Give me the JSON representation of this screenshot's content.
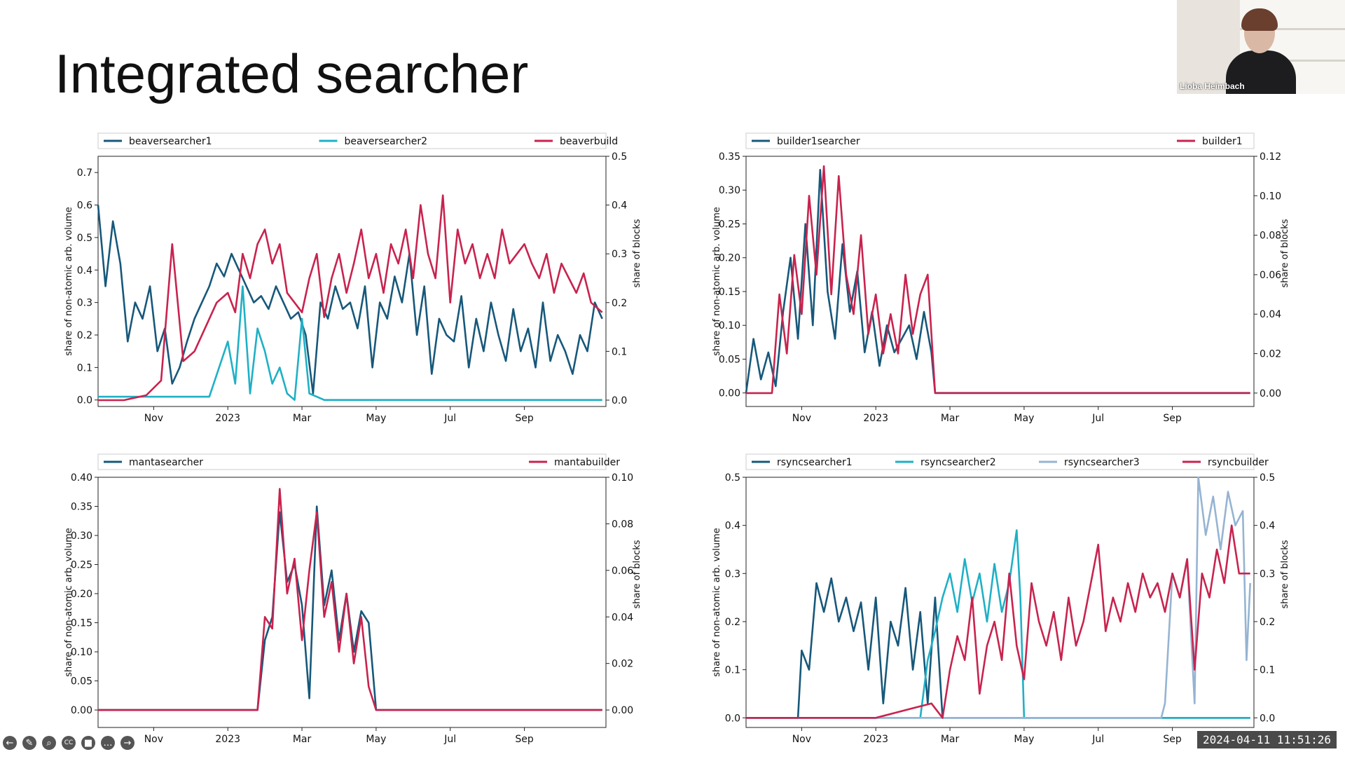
{
  "slide": {
    "title": "Integrated searcher"
  },
  "webcam": {
    "name": "Lioba Heimbach"
  },
  "timestamp": "2024-04-11  11:51:26",
  "toolbar": {
    "icons": [
      "back-icon",
      "pen-icon",
      "zoom-icon",
      "captions-icon",
      "camera-icon",
      "more-icon",
      "forward-icon"
    ],
    "glyphs": [
      "←",
      "✎",
      "⌕",
      "CC",
      "■",
      "…",
      "→"
    ]
  },
  "colors": {
    "dark": "#17587a",
    "light": "#1fb0c6",
    "pale": "#96b4d2",
    "red": "#c8234e"
  },
  "chart_data": [
    {
      "type": "line",
      "xlabels": [
        "Nov",
        "2023",
        "Mar",
        "May",
        "Jul",
        "Sep"
      ],
      "xlabel_pos": [
        1,
        3,
        5,
        7,
        9,
        11
      ],
      "xlim": [
        -0.5,
        13.2
      ],
      "ylabel": "share of non-atomic arb. volume",
      "y2label": "share of blocks",
      "ylim": [
        -0.02,
        0.75
      ],
      "yticks": [
        "0.0",
        "0.1",
        "0.2",
        "0.3",
        "0.4",
        "0.5",
        "0.6",
        "0.7"
      ],
      "y2lim": [
        -0.013,
        0.5
      ],
      "y2ticks": [
        "0.0",
        "0.1",
        "0.2",
        "0.3",
        "0.4",
        "0.5"
      ],
      "legend": [
        {
          "name": "beaversearcher1",
          "color": "#17587a"
        },
        {
          "name": "beaversearcher2",
          "color": "#1fb0c6"
        },
        {
          "name": "beaverbuild",
          "color": "#c8234e"
        }
      ],
      "series": [
        {
          "name": "beaversearcher1",
          "axis": "y",
          "color": "#17587a",
          "x": [
            -0.5,
            -0.3,
            -0.1,
            0.1,
            0.3,
            0.5,
            0.7,
            0.9,
            1.1,
            1.3,
            1.5,
            1.7,
            1.9,
            2.1,
            2.3,
            2.5,
            2.7,
            2.9,
            3.1,
            3.3,
            3.5,
            3.7,
            3.9,
            4.1,
            4.3,
            4.5,
            4.7,
            4.9,
            5.1,
            5.3,
            5.5,
            5.7,
            5.9,
            6.1,
            6.3,
            6.5,
            6.7,
            6.9,
            7.1,
            7.3,
            7.5,
            7.7,
            7.9,
            8.1,
            8.3,
            8.5,
            8.7,
            8.9,
            9.1,
            9.3,
            9.5,
            9.7,
            9.9,
            10.1,
            10.3,
            10.5,
            10.7,
            10.9,
            11.1,
            11.3,
            11.5,
            11.7,
            11.9,
            12.1,
            12.3,
            12.5,
            12.7,
            12.9,
            13.1
          ],
          "y": [
            0.6,
            0.35,
            0.55,
            0.42,
            0.18,
            0.3,
            0.25,
            0.35,
            0.15,
            0.22,
            0.05,
            0.1,
            0.18,
            0.25,
            0.3,
            0.35,
            0.42,
            0.38,
            0.45,
            0.4,
            0.35,
            0.3,
            0.32,
            0.28,
            0.35,
            0.3,
            0.25,
            0.27,
            0.2,
            0.02,
            0.3,
            0.25,
            0.35,
            0.28,
            0.3,
            0.22,
            0.35,
            0.1,
            0.3,
            0.25,
            0.38,
            0.3,
            0.45,
            0.2,
            0.35,
            0.08,
            0.25,
            0.2,
            0.18,
            0.32,
            0.1,
            0.25,
            0.15,
            0.3,
            0.2,
            0.12,
            0.28,
            0.15,
            0.22,
            0.1,
            0.3,
            0.12,
            0.2,
            0.15,
            0.08,
            0.2,
            0.15,
            0.3,
            0.25
          ]
        },
        {
          "name": "beaversearcher2",
          "axis": "y",
          "color": "#1fb0c6",
          "x": [
            -0.5,
            1.0,
            2.5,
            3.0,
            3.2,
            3.4,
            3.6,
            3.8,
            4.0,
            4.2,
            4.4,
            4.6,
            4.8,
            5.0,
            5.2,
            5.4,
            5.6,
            5.8,
            6.0,
            7.0,
            9.0,
            11.0,
            13.1
          ],
          "y": [
            0.01,
            0.01,
            0.01,
            0.18,
            0.05,
            0.35,
            0.02,
            0.22,
            0.15,
            0.05,
            0.1,
            0.02,
            0.0,
            0.25,
            0.02,
            0.01,
            0.0,
            0.0,
            0.0,
            0.0,
            0.0,
            0.0,
            0.0
          ]
        },
        {
          "name": "beaverbuild",
          "axis": "y2",
          "color": "#c8234e",
          "x": [
            -0.5,
            0.2,
            0.8,
            1.2,
            1.5,
            1.8,
            2.1,
            2.4,
            2.7,
            3.0,
            3.2,
            3.4,
            3.6,
            3.8,
            4.0,
            4.2,
            4.4,
            4.6,
            4.8,
            5.0,
            5.2,
            5.4,
            5.6,
            5.8,
            6.0,
            6.2,
            6.4,
            6.6,
            6.8,
            7.0,
            7.2,
            7.4,
            7.6,
            7.8,
            8.0,
            8.2,
            8.4,
            8.6,
            8.8,
            9.0,
            9.2,
            9.4,
            9.6,
            9.8,
            10.0,
            10.2,
            10.4,
            10.6,
            10.8,
            11.0,
            11.2,
            11.4,
            11.6,
            11.8,
            12.0,
            12.2,
            12.4,
            12.6,
            12.8,
            13.1
          ],
          "y": [
            0.0,
            0.0,
            0.01,
            0.04,
            0.32,
            0.08,
            0.1,
            0.15,
            0.2,
            0.22,
            0.18,
            0.3,
            0.25,
            0.32,
            0.35,
            0.28,
            0.32,
            0.22,
            0.2,
            0.18,
            0.25,
            0.3,
            0.17,
            0.25,
            0.3,
            0.22,
            0.28,
            0.35,
            0.25,
            0.3,
            0.22,
            0.32,
            0.28,
            0.35,
            0.25,
            0.4,
            0.3,
            0.25,
            0.42,
            0.2,
            0.35,
            0.28,
            0.32,
            0.25,
            0.3,
            0.25,
            0.35,
            0.28,
            0.3,
            0.32,
            0.28,
            0.25,
            0.3,
            0.22,
            0.28,
            0.25,
            0.22,
            0.26,
            0.2,
            0.18
          ]
        }
      ]
    },
    {
      "type": "line",
      "xlabels": [
        "Nov",
        "2023",
        "Mar",
        "May",
        "Jul",
        "Sep"
      ],
      "xlabel_pos": [
        1,
        3,
        5,
        7,
        9,
        11
      ],
      "xlim": [
        -0.5,
        13.2
      ],
      "ylabel": "share of non-atomic arb. volume",
      "y2label": "share of blocks",
      "ylim": [
        -0.02,
        0.35
      ],
      "yticks": [
        "0.00",
        "0.05",
        "0.10",
        "0.15",
        "0.20",
        "0.25",
        "0.30",
        "0.35"
      ],
      "y2lim": [
        -0.0068,
        0.12
      ],
      "y2ticks": [
        "0.00",
        "0.02",
        "0.04",
        "0.06",
        "0.08",
        "0.10",
        "0.12"
      ],
      "legend": [
        {
          "name": "builder1searcher",
          "color": "#17587a"
        },
        {
          "name": "builder1",
          "color": "#c8234e"
        }
      ],
      "series": [
        {
          "name": "builder1searcher",
          "axis": "y",
          "color": "#17587a",
          "x": [
            -0.5,
            -0.3,
            -0.1,
            0.1,
            0.3,
            0.5,
            0.7,
            0.9,
            1.1,
            1.3,
            1.5,
            1.7,
            1.9,
            2.1,
            2.3,
            2.5,
            2.7,
            2.9,
            3.1,
            3.3,
            3.5,
            3.7,
            3.9,
            4.1,
            4.3,
            4.5,
            4.6,
            13.1
          ],
          "y": [
            0.0,
            0.08,
            0.02,
            0.06,
            0.01,
            0.12,
            0.2,
            0.08,
            0.25,
            0.1,
            0.33,
            0.15,
            0.08,
            0.22,
            0.12,
            0.18,
            0.06,
            0.12,
            0.04,
            0.1,
            0.06,
            0.08,
            0.1,
            0.05,
            0.12,
            0.06,
            0.0,
            0.0
          ]
        },
        {
          "name": "builder1",
          "axis": "y2",
          "color": "#c8234e",
          "x": [
            -0.5,
            0.2,
            0.4,
            0.6,
            0.8,
            1.0,
            1.2,
            1.4,
            1.6,
            1.8,
            2.0,
            2.2,
            2.4,
            2.6,
            2.8,
            3.0,
            3.2,
            3.4,
            3.6,
            3.8,
            4.0,
            4.2,
            4.4,
            4.6,
            13.1
          ],
          "y": [
            0.0,
            0.0,
            0.05,
            0.02,
            0.07,
            0.04,
            0.1,
            0.06,
            0.115,
            0.05,
            0.11,
            0.06,
            0.04,
            0.08,
            0.03,
            0.05,
            0.02,
            0.04,
            0.02,
            0.06,
            0.03,
            0.05,
            0.06,
            0.0,
            0.0
          ]
        }
      ]
    },
    {
      "type": "line",
      "xlabels": [
        "Nov",
        "2023",
        "Mar",
        "May",
        "Jul",
        "Sep"
      ],
      "xlabel_pos": [
        1,
        3,
        5,
        7,
        9,
        11
      ],
      "xlim": [
        -0.5,
        13.2
      ],
      "ylabel": "share of non-atomic arb. volume",
      "y2label": "share of blocks",
      "ylim": [
        -0.03,
        0.4
      ],
      "yticks": [
        "0.00",
        "0.05",
        "0.10",
        "0.15",
        "0.20",
        "0.25",
        "0.30",
        "0.35",
        "0.40"
      ],
      "y2lim": [
        -0.0075,
        0.1
      ],
      "y2ticks": [
        "0.00",
        "0.02",
        "0.04",
        "0.06",
        "0.08",
        "0.10"
      ],
      "legend": [
        {
          "name": "mantasearcher",
          "color": "#17587a"
        },
        {
          "name": "mantabuilder",
          "color": "#c8234e"
        }
      ],
      "series": [
        {
          "name": "mantasearcher",
          "axis": "y",
          "color": "#17587a",
          "x": [
            -0.5,
            3.8,
            4.0,
            4.2,
            4.4,
            4.6,
            4.8,
            5.0,
            5.2,
            5.4,
            5.6,
            5.8,
            6.0,
            6.2,
            6.4,
            6.6,
            6.8,
            7.0,
            13.1
          ],
          "y": [
            0.0,
            0.0,
            0.12,
            0.16,
            0.34,
            0.22,
            0.25,
            0.18,
            0.02,
            0.35,
            0.18,
            0.24,
            0.12,
            0.2,
            0.1,
            0.17,
            0.15,
            0.0,
            0.0
          ]
        },
        {
          "name": "mantabuilder",
          "axis": "y2",
          "color": "#c8234e",
          "x": [
            -0.5,
            3.8,
            4.0,
            4.2,
            4.4,
            4.6,
            4.8,
            5.0,
            5.2,
            5.4,
            5.6,
            5.8,
            6.0,
            6.2,
            6.4,
            6.6,
            6.8,
            7.0,
            13.1
          ],
          "y": [
            0.0,
            0.0,
            0.04,
            0.035,
            0.095,
            0.05,
            0.065,
            0.03,
            0.06,
            0.085,
            0.04,
            0.055,
            0.025,
            0.05,
            0.02,
            0.04,
            0.01,
            0.0,
            0.0
          ]
        }
      ]
    },
    {
      "type": "line",
      "xlabels": [
        "Nov",
        "2023",
        "Mar",
        "May",
        "Jul",
        "Sep"
      ],
      "xlabel_pos": [
        1,
        3,
        5,
        7,
        9,
        11
      ],
      "xlim": [
        -0.5,
        13.2
      ],
      "ylabel": "share of non-atomic arb. volume",
      "y2label": "share of blocks",
      "ylim": [
        -0.02,
        0.5
      ],
      "yticks": [
        "0.0",
        "0.1",
        "0.2",
        "0.3",
        "0.4",
        "0.5"
      ],
      "y2lim": [
        -0.02,
        0.5
      ],
      "y2ticks": [
        "0.0",
        "0.1",
        "0.2",
        "0.3",
        "0.4",
        "0.5"
      ],
      "legend": [
        {
          "name": "rsyncsearcher1",
          "color": "#17587a"
        },
        {
          "name": "rsyncsearcher2",
          "color": "#1fb0c6"
        },
        {
          "name": "rsyncsearcher3",
          "color": "#96b4d2"
        },
        {
          "name": "rsyncbuilder",
          "color": "#c8234e"
        }
      ],
      "series": [
        {
          "name": "rsyncsearcher1",
          "axis": "y",
          "color": "#17587a",
          "x": [
            -0.5,
            0.9,
            1.0,
            1.2,
            1.4,
            1.6,
            1.8,
            2.0,
            2.2,
            2.4,
            2.6,
            2.8,
            3.0,
            3.2,
            3.4,
            3.6,
            3.8,
            4.0,
            4.2,
            4.4,
            4.6,
            4.8,
            5.0,
            13.1
          ],
          "y": [
            0.0,
            0.0,
            0.14,
            0.1,
            0.28,
            0.22,
            0.29,
            0.2,
            0.25,
            0.18,
            0.24,
            0.1,
            0.25,
            0.03,
            0.2,
            0.15,
            0.27,
            0.1,
            0.22,
            0.03,
            0.25,
            0.0,
            0.0,
            0.0
          ]
        },
        {
          "name": "rsyncsearcher2",
          "axis": "y",
          "color": "#1fb0c6",
          "x": [
            -0.5,
            4.2,
            4.4,
            4.6,
            4.8,
            5.0,
            5.2,
            5.4,
            5.6,
            5.8,
            6.0,
            6.2,
            6.4,
            6.6,
            6.8,
            6.9,
            7.0,
            13.1
          ],
          "y": [
            0.0,
            0.0,
            0.12,
            0.18,
            0.25,
            0.3,
            0.22,
            0.33,
            0.24,
            0.3,
            0.2,
            0.32,
            0.22,
            0.28,
            0.39,
            0.25,
            0.0,
            0.0
          ]
        },
        {
          "name": "rsyncsearcher3",
          "axis": "y",
          "color": "#96b4d2",
          "x": [
            -0.5,
            10.7,
            10.8,
            11.0,
            11.2,
            11.4,
            11.6,
            11.7,
            11.9,
            12.1,
            12.3,
            12.5,
            12.7,
            12.9,
            13.0,
            13.1
          ],
          "y": [
            0.0,
            0.0,
            0.03,
            0.3,
            0.25,
            0.33,
            0.03,
            0.5,
            0.38,
            0.46,
            0.35,
            0.47,
            0.4,
            0.43,
            0.12,
            0.28
          ]
        },
        {
          "name": "rsyncbuilder",
          "axis": "y2",
          "color": "#c8234e",
          "x": [
            -0.5,
            3.0,
            3.5,
            4.0,
            4.5,
            4.8,
            5.0,
            5.2,
            5.4,
            5.6,
            5.8,
            6.0,
            6.2,
            6.4,
            6.6,
            6.8,
            7.0,
            7.2,
            7.4,
            7.6,
            7.8,
            8.0,
            8.2,
            8.4,
            8.6,
            8.8,
            9.0,
            9.2,
            9.4,
            9.6,
            9.8,
            10.0,
            10.2,
            10.4,
            10.6,
            10.8,
            11.0,
            11.2,
            11.4,
            11.6,
            11.8,
            12.0,
            12.2,
            12.4,
            12.6,
            12.8,
            13.1
          ],
          "y": [
            0.0,
            0.0,
            0.01,
            0.02,
            0.03,
            0.0,
            0.1,
            0.17,
            0.12,
            0.25,
            0.05,
            0.15,
            0.2,
            0.12,
            0.3,
            0.15,
            0.08,
            0.28,
            0.2,
            0.15,
            0.22,
            0.12,
            0.25,
            0.15,
            0.2,
            0.28,
            0.36,
            0.18,
            0.25,
            0.2,
            0.28,
            0.22,
            0.3,
            0.25,
            0.28,
            0.22,
            0.3,
            0.25,
            0.33,
            0.1,
            0.3,
            0.25,
            0.35,
            0.28,
            0.4,
            0.3,
            0.3
          ]
        }
      ]
    }
  ]
}
